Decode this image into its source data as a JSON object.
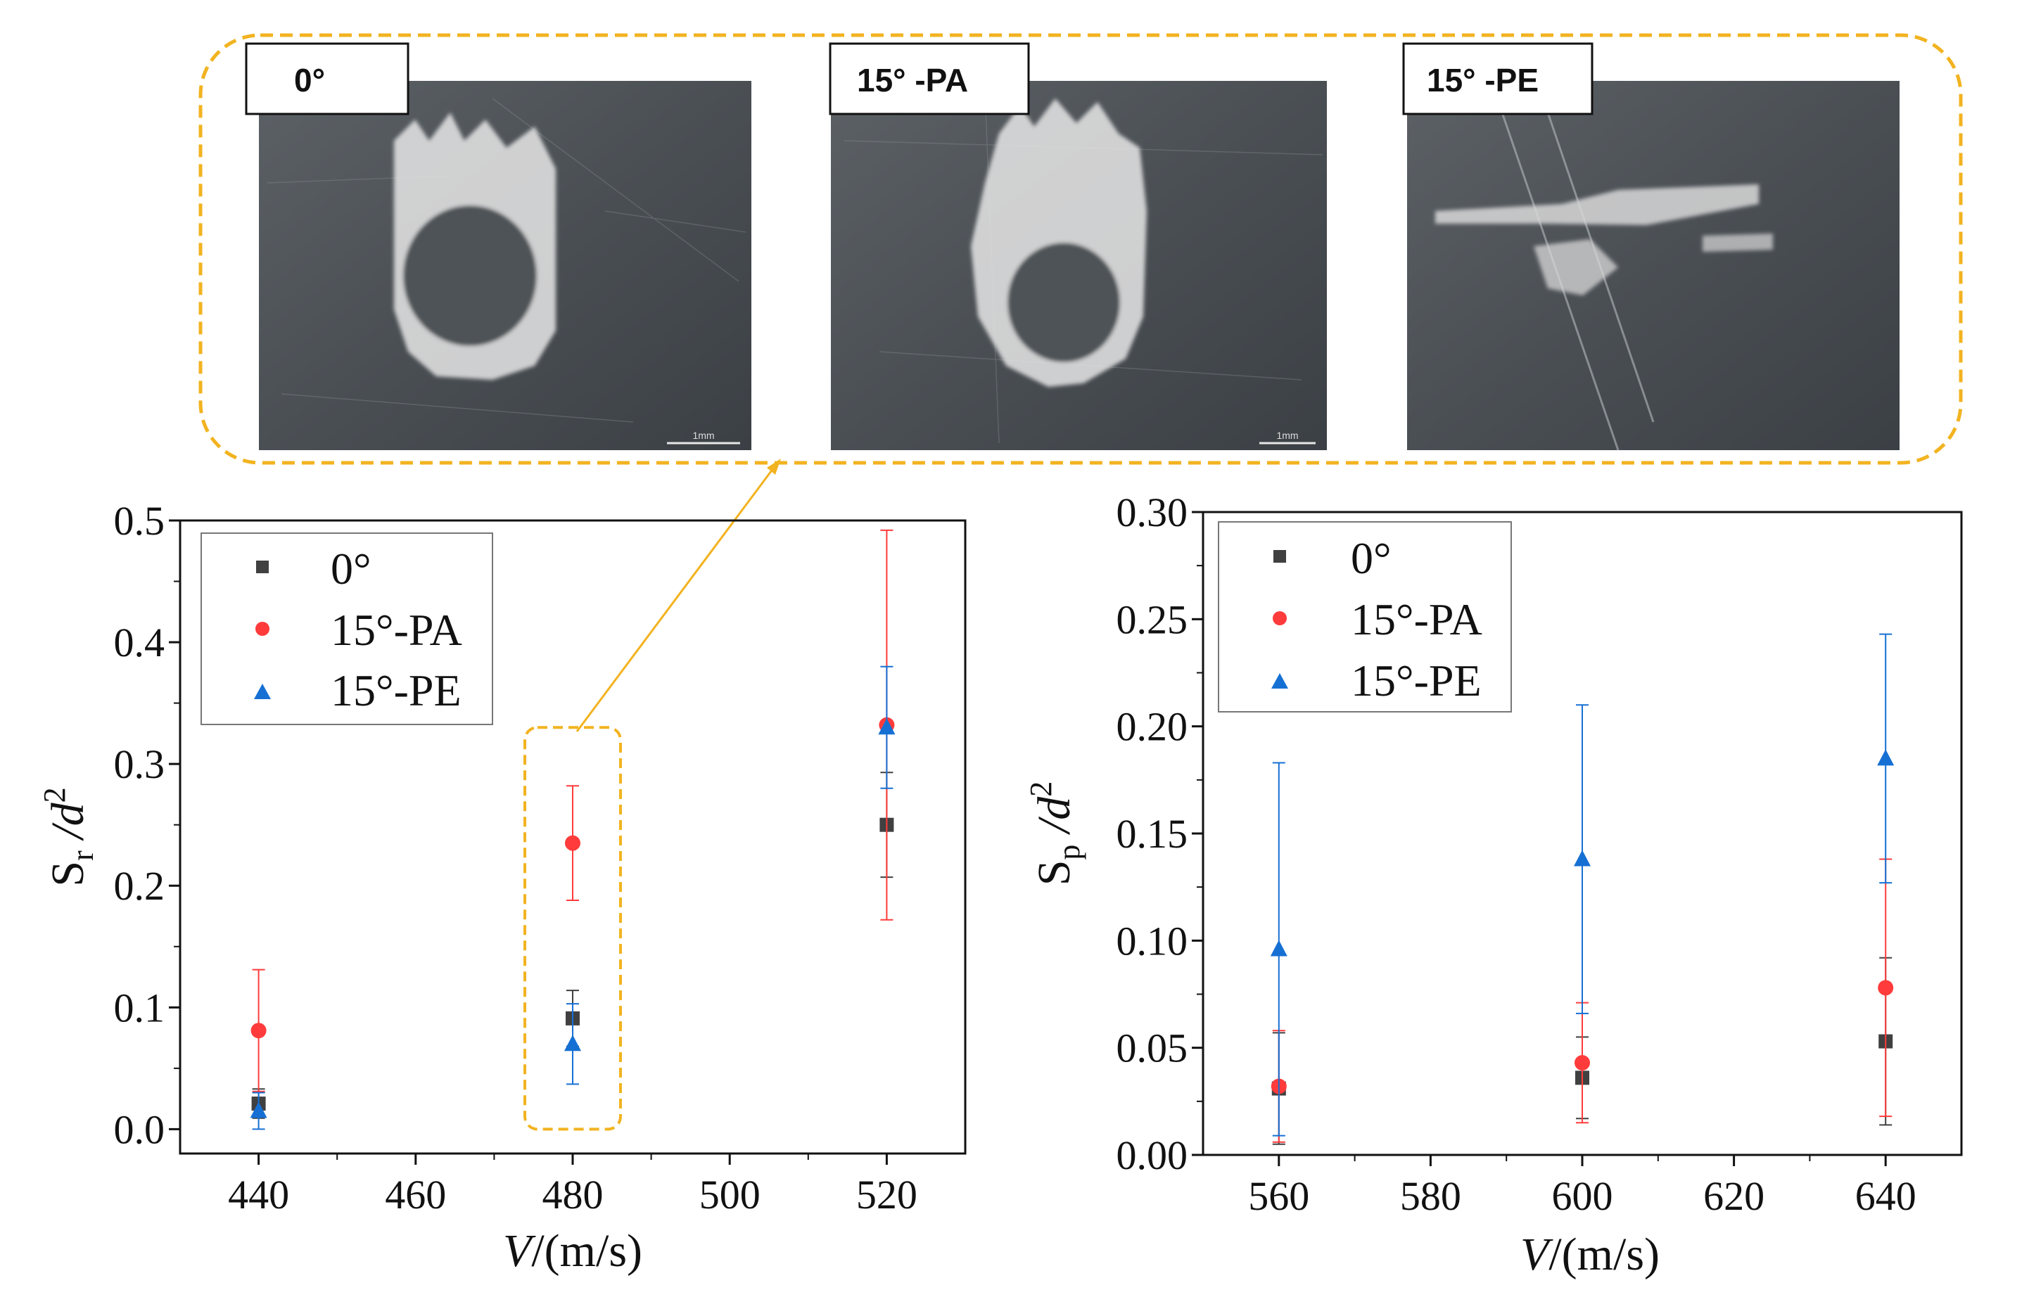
{
  "colors": {
    "series_0": "#404040",
    "series_15pa": "#ff3b3b",
    "series_15pe": "#1670d4",
    "highlight": "#f2b320"
  },
  "photos": [
    {
      "label": "0°",
      "scale_bar": "1mm"
    },
    {
      "label": "15° -PA",
      "scale_bar": "1mm"
    },
    {
      "label": "15° -PE"
    }
  ],
  "chart_data": [
    {
      "type": "scatter",
      "xlabel": "V/(m/s)",
      "xlabel_italic": "V",
      "xlabel_rest": "/(m/s)",
      "ylabel_base": "S",
      "ylabel_sub": "r",
      "ylabel_tail": " /d",
      "ylabel_sup": "2",
      "xlim": [
        430,
        530
      ],
      "ylim": [
        -0.02,
        0.5
      ],
      "xticks": [
        440,
        460,
        480,
        500,
        520
      ],
      "yticks": [
        0.0,
        0.1,
        0.2,
        0.3,
        0.4,
        0.5
      ],
      "xtick_labels": [
        "440",
        "460",
        "480",
        "500",
        "520"
      ],
      "ytick_labels": [
        "0.0",
        "0.1",
        "0.2",
        "0.3",
        "0.4",
        "0.5"
      ],
      "legend": [
        "0°",
        "15°-PA",
        "15°-PE"
      ],
      "series": [
        {
          "name": "0°",
          "marker": "square",
          "x": [
            440,
            480,
            520
          ],
          "y": [
            0.021,
            0.091,
            0.25
          ],
          "err": [
            0.012,
            0.023,
            0.043
          ]
        },
        {
          "name": "15°-PA",
          "marker": "circle",
          "x": [
            440,
            480,
            520
          ],
          "y": [
            0.081,
            0.235,
            0.332
          ],
          "err": [
            0.05,
            0.047,
            0.16
          ]
        },
        {
          "name": "15°-PE",
          "marker": "triangle",
          "x": [
            440,
            480,
            520
          ],
          "y": [
            0.015,
            0.07,
            0.33
          ],
          "err": [
            0.015,
            0.033,
            0.05
          ]
        }
      ],
      "highlight_x": 480
    },
    {
      "type": "scatter",
      "xlabel": "V/(m/s)",
      "xlabel_italic": "V",
      "xlabel_rest": "/(m/s)",
      "ylabel_base": "S",
      "ylabel_sub": "p",
      "ylabel_tail": " /d",
      "ylabel_sup": "2",
      "xlim": [
        550,
        650
      ],
      "ylim": [
        0.0,
        0.3
      ],
      "xticks": [
        560,
        580,
        600,
        620,
        640
      ],
      "yticks": [
        0.0,
        0.05,
        0.1,
        0.15,
        0.2,
        0.25,
        0.3
      ],
      "xtick_labels": [
        "560",
        "580",
        "600",
        "620",
        "640"
      ],
      "ytick_labels": [
        "0.00",
        "0.05",
        "0.10",
        "0.15",
        "0.20",
        "0.25",
        "0.30"
      ],
      "legend": [
        "0°",
        "15°-PA",
        "15°-PE"
      ],
      "series": [
        {
          "name": "0°",
          "marker": "square",
          "x": [
            560,
            600,
            640
          ],
          "y": [
            0.031,
            0.036,
            0.053
          ],
          "err": [
            0.026,
            0.019,
            0.039
          ]
        },
        {
          "name": "15°-PA",
          "marker": "circle",
          "x": [
            560,
            600,
            640
          ],
          "y": [
            0.032,
            0.043,
            0.078
          ],
          "err": [
            0.026,
            0.028,
            0.06
          ]
        },
        {
          "name": "15°-PE",
          "marker": "triangle",
          "x": [
            560,
            600,
            640
          ],
          "y": [
            0.096,
            0.138,
            0.185
          ],
          "err": [
            0.087,
            0.072,
            0.058
          ]
        }
      ]
    }
  ]
}
